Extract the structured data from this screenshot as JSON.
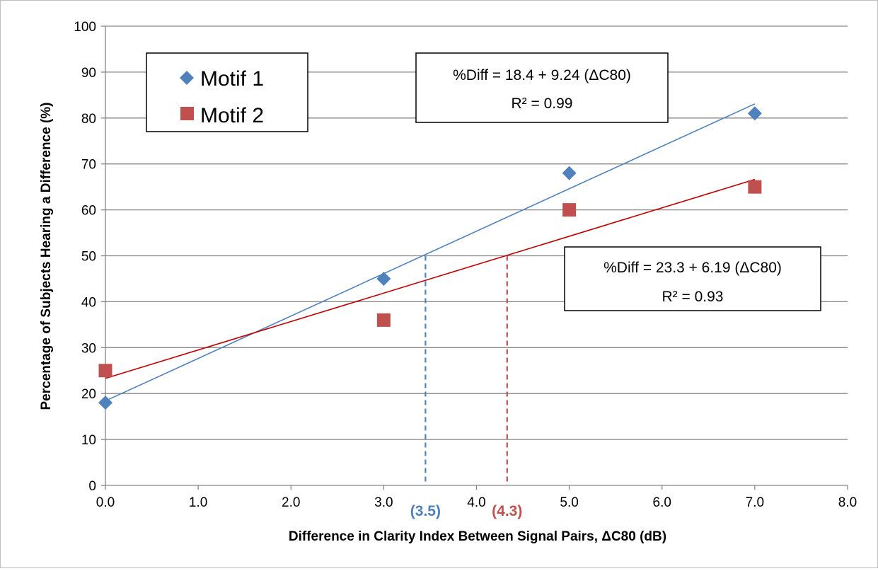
{
  "chart_data": {
    "type": "scatter",
    "xlabel": "Difference in Clarity Index Between Signal Pairs, ΔC80 (dB)",
    "ylabel": "Percentage of Subjects Hearing a  Difference (%)",
    "xlim": [
      0,
      8
    ],
    "ylim": [
      0,
      100
    ],
    "x_ticks": [
      "0.0",
      "1.0",
      "2.0",
      "3.0",
      "4.0",
      "5.0",
      "6.0",
      "7.0",
      "8.0"
    ],
    "y_ticks": [
      "0",
      "10",
      "20",
      "30",
      "40",
      "50",
      "60",
      "70",
      "80",
      "90",
      "100"
    ],
    "grid": "horizontal major",
    "legend_position": "top-left",
    "series": [
      {
        "name": "Motif 1",
        "marker": "diamond",
        "color": "#4F81BD",
        "trendline_color": "#4F81BD",
        "x": [
          0,
          3,
          5,
          7
        ],
        "y": [
          18,
          45,
          68,
          81
        ],
        "trendline": {
          "intercept": 18.4,
          "slope": 9.24,
          "x_range": [
            0,
            7
          ],
          "equation": "%Diff = 18.4 + 9.24 (ΔC80)",
          "r2": "R² = 0.99"
        }
      },
      {
        "name": "Motif 2",
        "marker": "square",
        "color": "#C0504D",
        "trendline_color": "#C00000",
        "x": [
          0,
          3,
          5,
          7
        ],
        "y": [
          25,
          36,
          60,
          65
        ],
        "trendline": {
          "intercept": 23.3,
          "slope": 6.19,
          "x_range": [
            0,
            7
          ],
          "equation": "%Diff = 23.3 + 6.19 (ΔC80)",
          "r2": "R² = 0.93"
        }
      }
    ],
    "annotations": [
      {
        "type": "threshold",
        "x": 3.45,
        "y": 50,
        "label": "(3.5)",
        "color": "#4F81BD"
      },
      {
        "type": "threshold",
        "x": 4.33,
        "y": 50,
        "label": "(4.3)",
        "color": "#C0504D"
      }
    ]
  }
}
